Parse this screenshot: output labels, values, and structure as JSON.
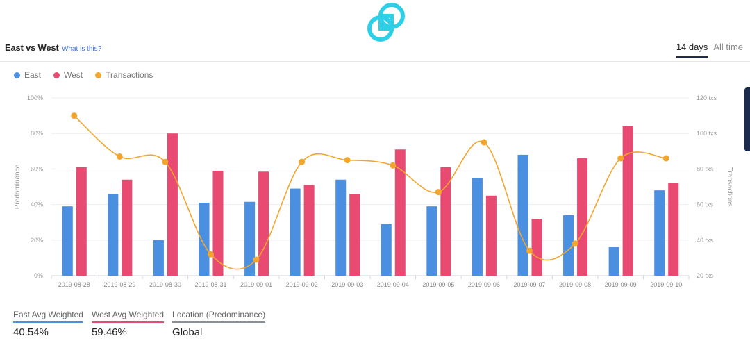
{
  "header": {
    "title": "East vs West",
    "help_link": "What is this?",
    "tabs": [
      {
        "label": "14 days",
        "active": true
      },
      {
        "label": "All time",
        "active": false
      }
    ]
  },
  "legend": [
    {
      "label": "East",
      "color": "#4a8fe0"
    },
    {
      "label": "West",
      "color": "#e84a72"
    },
    {
      "label": "Transactions",
      "color": "#f2a62d"
    }
  ],
  "chart_data": {
    "type": "bar",
    "categories": [
      "2019-08-28",
      "2019-08-29",
      "2019-08-30",
      "2019-08-31",
      "2019-09-01",
      "2019-09-02",
      "2019-09-03",
      "2019-09-04",
      "2019-09-05",
      "2019-09-06",
      "2019-09-07",
      "2019-09-08",
      "2019-09-09",
      "2019-09-10"
    ],
    "series": [
      {
        "name": "East",
        "type": "bar",
        "axis": "left",
        "color": "#4a8fe0",
        "values": [
          39,
          46,
          20,
          41,
          41.5,
          49,
          54,
          29,
          39,
          55,
          68,
          34,
          16,
          48
        ]
      },
      {
        "name": "West",
        "type": "bar",
        "axis": "left",
        "color": "#e84a72",
        "values": [
          61,
          54,
          80,
          59,
          58.5,
          51,
          46,
          71,
          61,
          45,
          32,
          66,
          84,
          52
        ]
      },
      {
        "name": "Transactions",
        "type": "line",
        "axis": "right",
        "color": "#f2a62d",
        "values": [
          110,
          87,
          84,
          32,
          29,
          84,
          85,
          82,
          67,
          95,
          34,
          38,
          86,
          86
        ]
      }
    ],
    "ylabel": "Predominance",
    "ylabel_right": "Transactions",
    "ylim": [
      0,
      100
    ],
    "ylim_right": [
      20,
      120
    ],
    "yticks": [
      "0%",
      "20%",
      "40%",
      "60%",
      "80%",
      "100%"
    ],
    "yticks_right": [
      "20 txs",
      "40 txs",
      "60 txs",
      "80 txs",
      "100 txs",
      "120 txs"
    ],
    "grid": true,
    "legend_position": "top-left"
  },
  "stats": [
    {
      "label": "East Avg Weighted",
      "value": "40.54%",
      "color": "#4a8fe0"
    },
    {
      "label": "West Avg Weighted",
      "value": "59.46%",
      "color": "#e84a72"
    },
    {
      "label": "Location (Predominance)",
      "value": "Global",
      "color": "#8a8f9c"
    }
  ],
  "colors": {
    "logo": "#2ed0e8",
    "accent": "#1d2b4f"
  }
}
